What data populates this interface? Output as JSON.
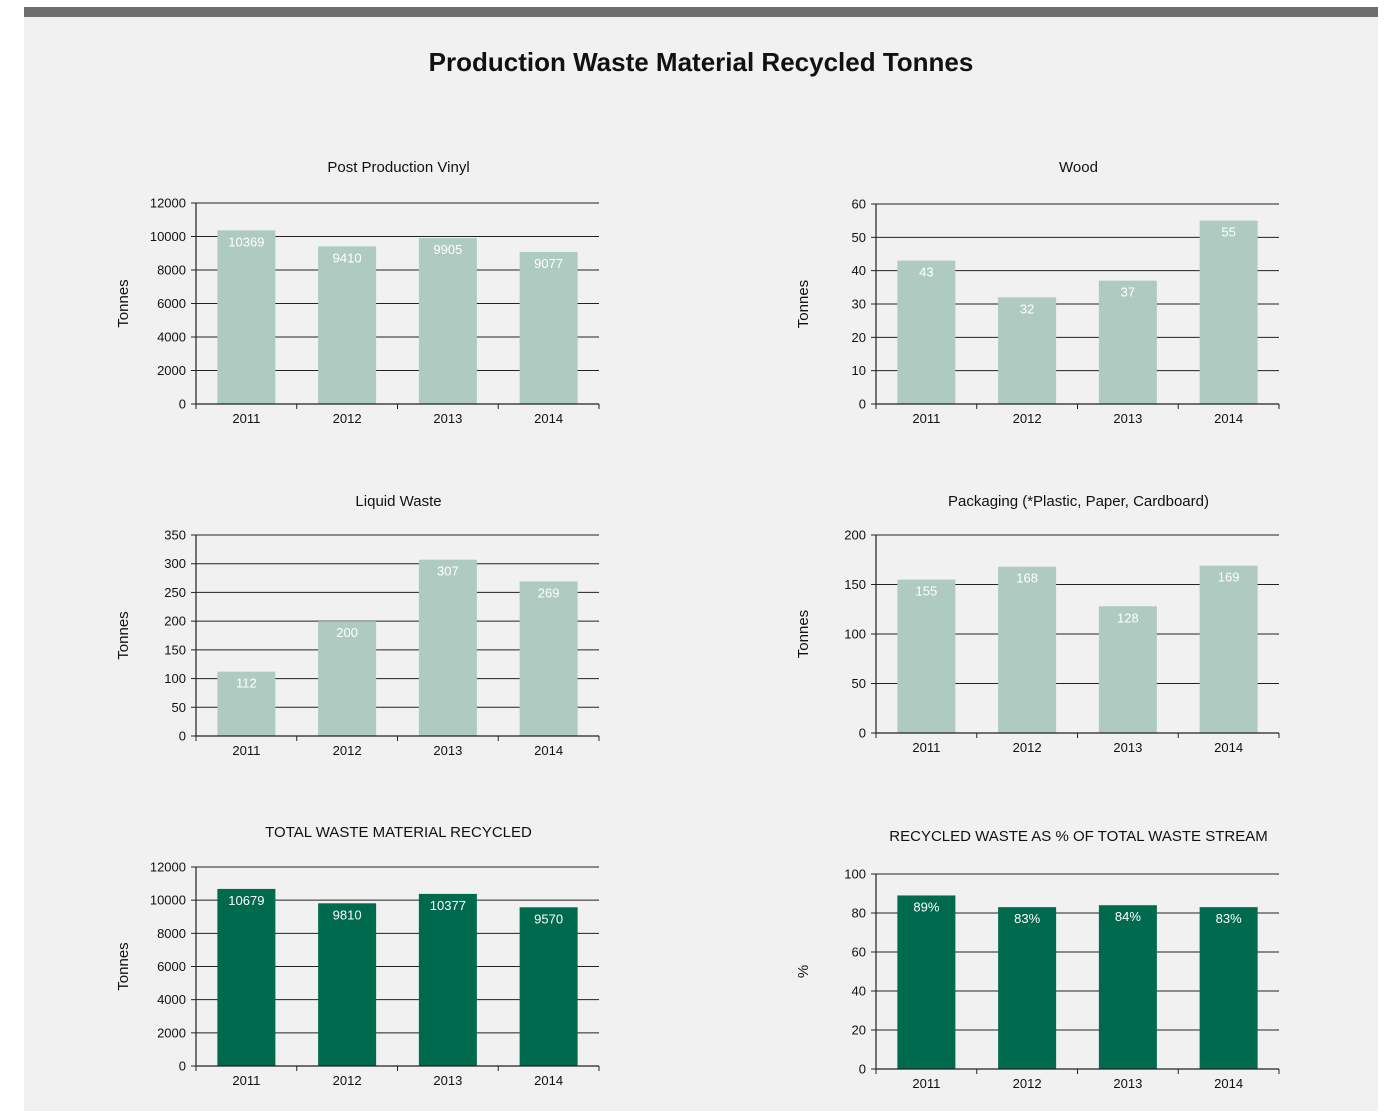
{
  "page_title": "Production Waste Material Recycled Tonnes",
  "colors": {
    "light_bar": "#afcbc1",
    "dark_bar": "#006a4e",
    "background": "#f1f1f1",
    "top_bar": "#6e6e6e"
  },
  "chart_data": [
    {
      "id": "vinyl",
      "type": "bar",
      "title": "Post Production Vinyl",
      "ylabel": "Tonnes",
      "categories": [
        "2011",
        "2012",
        "2013",
        "2014"
      ],
      "values": [
        10369,
        9410,
        9905,
        9077
      ],
      "labels": [
        "10369",
        "9410",
        "9905",
        "9077"
      ],
      "ylim": [
        0,
        12000
      ],
      "yticks": [
        0,
        2000,
        4000,
        6000,
        8000,
        10000,
        12000
      ],
      "grid": true,
      "color": "#afcbc1"
    },
    {
      "id": "wood",
      "type": "bar",
      "title": "Wood",
      "ylabel": "Tonnes",
      "categories": [
        "2011",
        "2012",
        "2013",
        "2014"
      ],
      "values": [
        43,
        32,
        37,
        55
      ],
      "labels": [
        "43",
        "32",
        "37",
        "55"
      ],
      "ylim": [
        0,
        60
      ],
      "yticks": [
        0,
        10,
        20,
        30,
        40,
        50,
        60
      ],
      "grid": true,
      "color": "#afcbc1"
    },
    {
      "id": "liquid",
      "type": "bar",
      "title": "Liquid Waste",
      "ylabel": "Tonnes",
      "categories": [
        "2011",
        "2012",
        "2013",
        "2014"
      ],
      "values": [
        112,
        200,
        307,
        269
      ],
      "labels": [
        "112",
        "200",
        "307",
        "269"
      ],
      "ylim": [
        0,
        350
      ],
      "yticks": [
        0,
        50,
        100,
        150,
        200,
        250,
        300,
        350
      ],
      "grid": true,
      "color": "#afcbc1"
    },
    {
      "id": "packaging",
      "type": "bar",
      "title": "Packaging (*Plastic, Paper, Cardboard)",
      "ylabel": "Tonnes",
      "categories": [
        "2011",
        "2012",
        "2013",
        "2014"
      ],
      "values": [
        155,
        168,
        128,
        169
      ],
      "labels": [
        "155",
        "168",
        "128",
        "169"
      ],
      "ylim": [
        0,
        200
      ],
      "yticks": [
        0,
        50,
        100,
        150,
        200
      ],
      "grid": true,
      "color": "#afcbc1"
    },
    {
      "id": "total",
      "type": "bar",
      "title": "TOTAL WASTE MATERIAL RECYCLED",
      "ylabel": "Tonnes",
      "categories": [
        "2011",
        "2012",
        "2013",
        "2014"
      ],
      "values": [
        10679,
        9810,
        10377,
        9570
      ],
      "labels": [
        "10679",
        "9810",
        "10377",
        "9570"
      ],
      "ylim": [
        0,
        12000
      ],
      "yticks": [
        0,
        2000,
        4000,
        6000,
        8000,
        10000,
        12000
      ],
      "grid": true,
      "color": "#006a4e"
    },
    {
      "id": "percent",
      "type": "bar",
      "title": "RECYCLED WASTE AS % OF TOTAL WASTE STREAM",
      "ylabel": "%",
      "categories": [
        "2011",
        "2012",
        "2013",
        "2014"
      ],
      "values": [
        89,
        83,
        84,
        83
      ],
      "labels": [
        "89%",
        "83%",
        "84%",
        "83%"
      ],
      "ylim": [
        0,
        100
      ],
      "yticks": [
        0,
        20,
        40,
        60,
        80,
        100
      ],
      "grid": true,
      "color": "#006a4e"
    }
  ]
}
